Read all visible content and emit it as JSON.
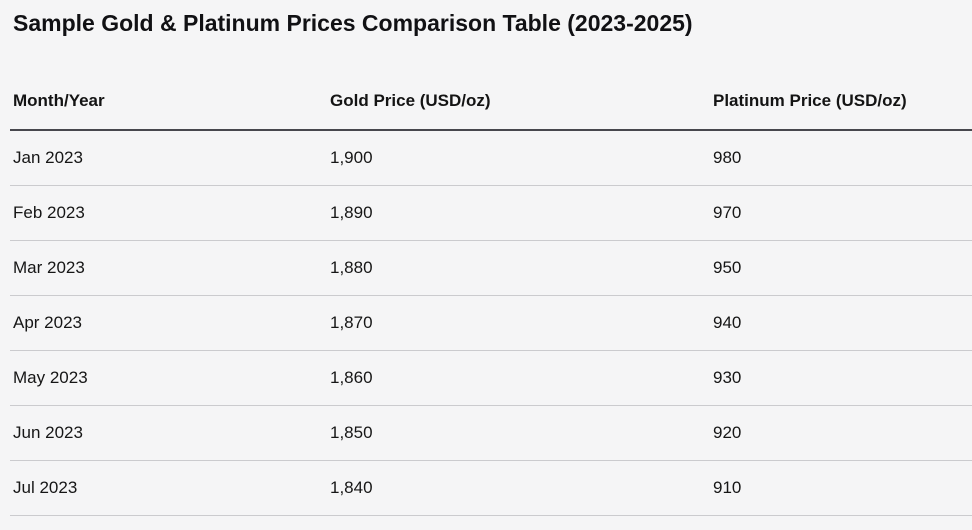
{
  "page": {
    "title": "Sample Gold & Platinum Prices Comparison Table (2023-2025)",
    "background_color": "#f5f5f6",
    "text_color": "#141414",
    "header_rule_color": "#47474d",
    "row_rule_color": "#cbcbce"
  },
  "table": {
    "columns": [
      "Month/Year",
      "Gold Price (USD/oz)",
      "Platinum Price (USD/oz)"
    ],
    "rows": [
      [
        "Jan 2023",
        "1,900",
        "980"
      ],
      [
        "Feb 2023",
        "1,890",
        "970"
      ],
      [
        "Mar 2023",
        "1,880",
        "950"
      ],
      [
        "Apr 2023",
        "1,870",
        "940"
      ],
      [
        "May 2023",
        "1,860",
        "930"
      ],
      [
        "Jun 2023",
        "1,850",
        "920"
      ],
      [
        "Jul 2023",
        "1,840",
        "910"
      ]
    ]
  },
  "chart_data": {
    "type": "table",
    "title": "Sample Gold & Platinum Prices Comparison Table (2023-2025)",
    "categories": [
      "Jan 2023",
      "Feb 2023",
      "Mar 2023",
      "Apr 2023",
      "May 2023",
      "Jun 2023",
      "Jul 2023"
    ],
    "series": [
      {
        "name": "Gold Price (USD/oz)",
        "values": [
          1900,
          1890,
          1880,
          1870,
          1860,
          1850,
          1840
        ]
      },
      {
        "name": "Platinum Price (USD/oz)",
        "values": [
          980,
          970,
          950,
          940,
          930,
          920,
          910
        ]
      }
    ]
  }
}
